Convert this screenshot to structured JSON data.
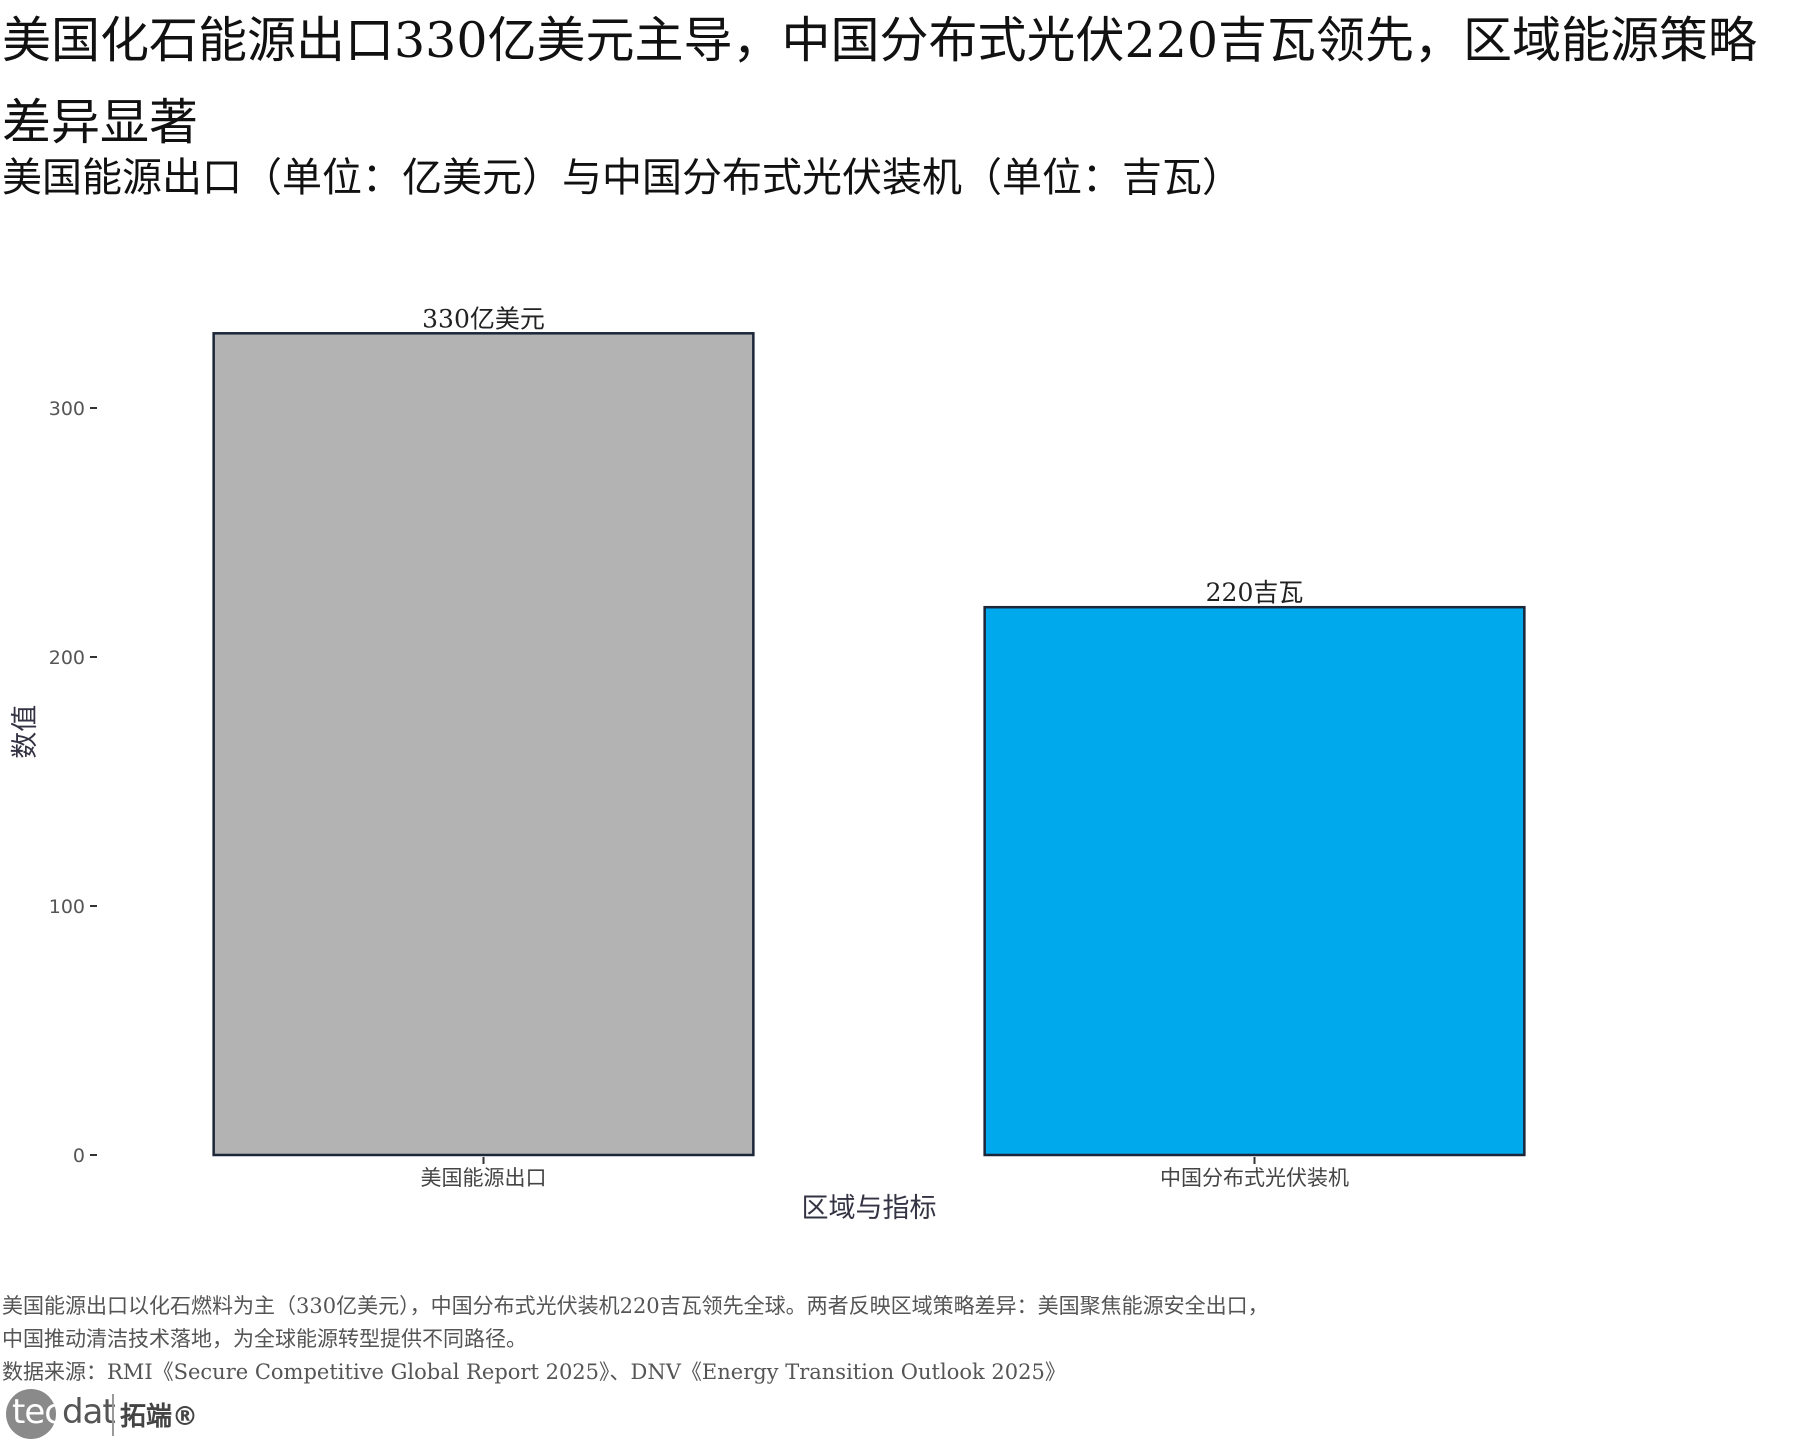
{
  "header": {
    "title": "美国化石能源出口330亿美元主导，中国分布式光伏220吉瓦领先，区域能源策略差异显著",
    "subtitle": "美国能源出口（单位：亿美元）与中国分布式光伏装机（单位：吉瓦）"
  },
  "chart_data": {
    "type": "bar",
    "categories": [
      "美国能源出口",
      "中国分布式光伏装机"
    ],
    "values": [
      330,
      220
    ],
    "value_labels": [
      "330亿美元",
      "220吉瓦"
    ],
    "colors": [
      "#b3b3b3",
      "#00a8ec"
    ],
    "xlabel": "区域与指标",
    "ylabel": "数值",
    "ylim": [
      0,
      340
    ],
    "yticks": [
      0,
      100,
      200,
      300
    ],
    "grid": false
  },
  "footer": {
    "caption_line1": "美国能源出口以化石燃料为主（330亿美元），中国分布式光伏装机220吉瓦领先全球。两者反映区域策略差异：美国聚焦能源安全出口，",
    "caption_line2": "中国推动清洁技术落地，为全球能源转型提供不同路径。",
    "source": "数据来源：RMI《Secure Competitive Global Report 2025》、DNV《Energy Transition Outlook 2025》"
  },
  "logo": {
    "brand_prefix": "tec",
    "brand_suffix": "dat",
    "brand_cn": "拓端®"
  }
}
